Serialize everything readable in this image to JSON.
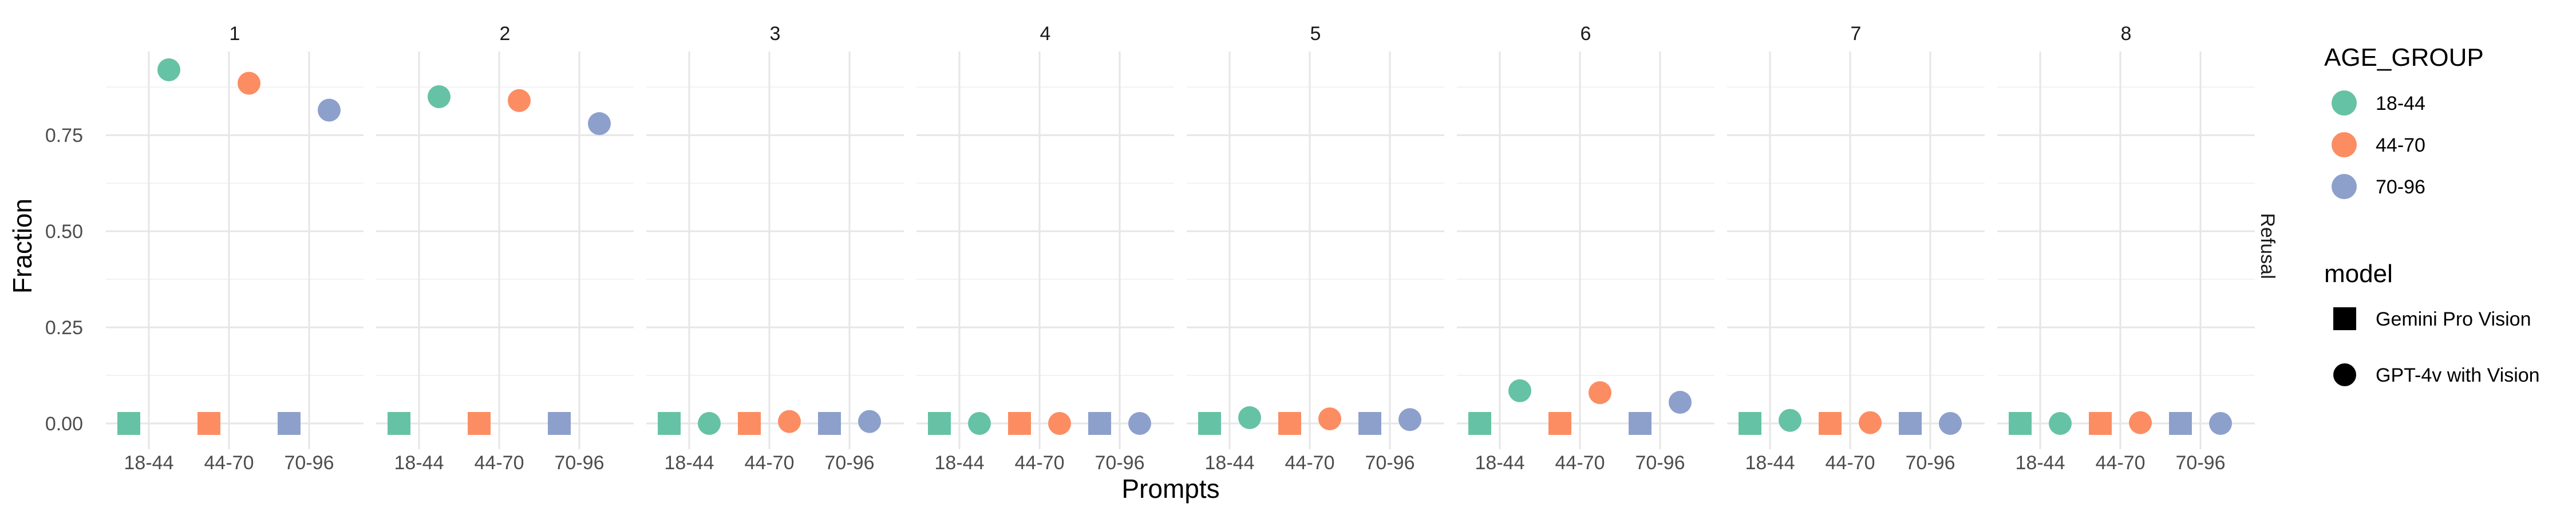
{
  "chart_data": {
    "type": "scatter",
    "facet_labels": [
      "1",
      "2",
      "3",
      "4",
      "5",
      "6",
      "7",
      "8"
    ],
    "row_strip": "Refusal",
    "categories": [
      "18-44",
      "44-70",
      "70-96"
    ],
    "xlabel": "Prompts",
    "ylabel": "Fraction",
    "ylim": [
      0,
      0.93
    ],
    "yticks": [
      0.0,
      0.25,
      0.5,
      0.75
    ],
    "ytick_labels": [
      "0.00",
      "0.25",
      "0.50",
      "0.75"
    ],
    "grid": true,
    "colors": {
      "18-44": "#66c2a5",
      "44-70": "#fc8d62",
      "70-96": "#8da0cb"
    },
    "series": [
      {
        "name": "Gemini Pro Vision",
        "shape": "square",
        "values": [
          [
            0.0,
            0.0,
            0.0
          ],
          [
            0.0,
            0.0,
            0.0
          ],
          [
            0.0,
            0.0,
            0.0
          ],
          [
            0.0,
            0.0,
            0.0
          ],
          [
            0.0,
            0.0,
            0.0
          ],
          [
            0.0,
            0.0,
            0.0
          ],
          [
            0.0,
            0.0,
            0.0
          ],
          [
            0.0,
            0.0,
            0.0
          ]
        ]
      },
      {
        "name": "GPT-4v with Vision",
        "shape": "circle",
        "values": [
          [
            0.92,
            0.885,
            0.815
          ],
          [
            0.85,
            0.84,
            0.78
          ],
          [
            0.0,
            0.005,
            0.005
          ],
          [
            0.0,
            0.0,
            0.0
          ],
          [
            0.015,
            0.012,
            0.01
          ],
          [
            0.085,
            0.08,
            0.055
          ],
          [
            0.008,
            0.002,
            0.0
          ],
          [
            0.0,
            0.002,
            0.0
          ]
        ]
      }
    ],
    "legend": {
      "placement": "right",
      "color_title": "AGE_GROUP",
      "color_items": [
        "18-44",
        "44-70",
        "70-96"
      ],
      "shape_title": "model",
      "shape_items": [
        "Gemini Pro Vision",
        "GPT-4v with Vision"
      ]
    }
  }
}
